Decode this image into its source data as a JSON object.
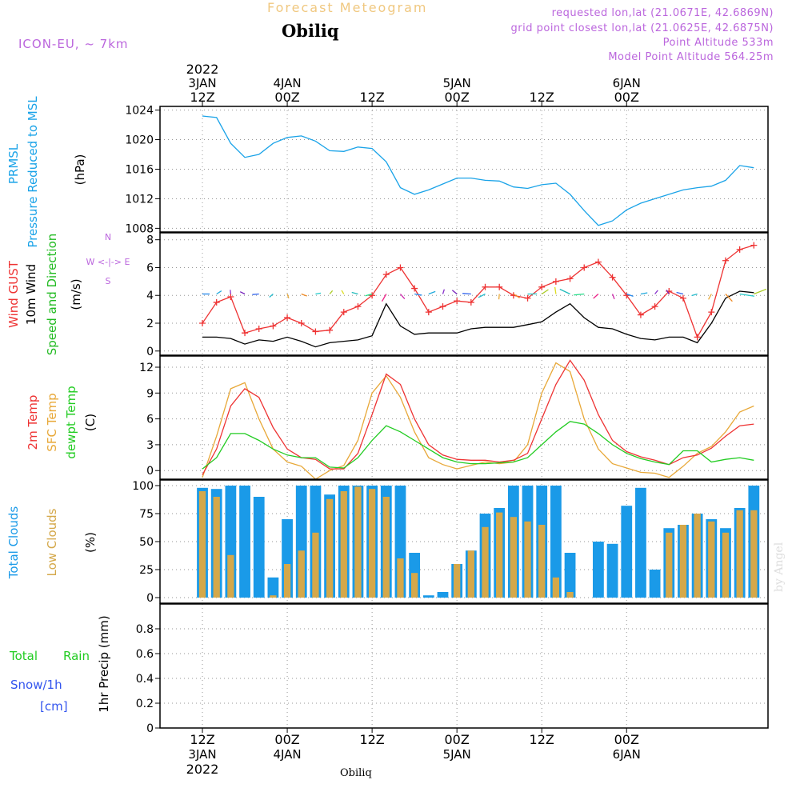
{
  "header": {
    "model": "ICON-EU, ~ 7km",
    "subtitle": "Forecast Meteogram",
    "station": "Obiliq",
    "requested": "requested lon,lat (21.0671E, 42.6869N)",
    "gridpoint": "grid point closest lon,lat (21.0625E, 42.6875N)",
    "point_alt": "Point Altitude 533m",
    "model_alt": "Model Point Altitude 564.25m"
  },
  "top_axis": [
    {
      "l1": "2022",
      "l2": "3JAN",
      "l3": "12Z"
    },
    {
      "l1": "",
      "l2": "4JAN",
      "l3": "00Z"
    },
    {
      "l1": "",
      "l2": "",
      "l3": "12Z"
    },
    {
      "l1": "",
      "l2": "5JAN",
      "l3": "00Z"
    },
    {
      "l1": "",
      "l2": "",
      "l3": "12Z"
    },
    {
      "l1": "",
      "l2": "6JAN",
      "l3": "00Z"
    }
  ],
  "bottom_axis": [
    {
      "l1": "12Z",
      "l2": "3JAN",
      "l3": "2022"
    },
    {
      "l1": "00Z",
      "l2": "4JAN",
      "l3": ""
    },
    {
      "l1": "12Z",
      "l2": "",
      "l3": ""
    },
    {
      "l1": "00Z",
      "l2": "5JAN",
      "l3": ""
    },
    {
      "l1": "12Z",
      "l2": "",
      "l3": ""
    },
    {
      "l1": "00Z",
      "l2": "6JAN",
      "l3": ""
    }
  ],
  "footer": {
    "station": "Obiliq",
    "credit": "by Angel"
  },
  "panel_labels": {
    "pressure": {
      "a": "PRMSL",
      "b": "Pressure Reduced to MSL",
      "unit": "(hPa)"
    },
    "wind": {
      "a": "Wind GUST",
      "b": "10m Wind",
      "c": "Speed and Direction",
      "unit": "(m/s)",
      "compass_we": "W <-|-> E",
      "compass_n": "N",
      "compass_s": "S"
    },
    "temp": {
      "a": "2m Temp",
      "b": "SFC Temp",
      "c": "dewpt Temp",
      "unit": "(C)"
    },
    "clouds": {
      "a": "Total Clouds",
      "b": "Low Clouds",
      "unit": "(%)"
    },
    "precip": {
      "total": "Total",
      "rain": "Rain",
      "snow": "Snow/1h",
      "cm": "[cm]",
      "axis": "1hr Precip (mm)"
    }
  },
  "colors": {
    "pressure": "#1aa3e8",
    "gust": "#ee3333",
    "wind": "#000000",
    "winddir": "#22bb22",
    "t2m": "#ee3333",
    "tsfc": "#e8a838",
    "tdew": "#22cc22",
    "cloud_total": "#1a9ae8",
    "cloud_low": "#d4a84a",
    "snow": "#3355ee",
    "model": "#bb66dd",
    "subtitle": "#f0c880"
  },
  "chart_data": [
    {
      "type": "line",
      "name": "PRMSL",
      "x_hours": [
        0,
        2,
        4,
        6,
        8,
        10,
        12,
        14,
        16,
        18,
        20,
        22,
        24,
        26,
        28,
        30,
        32,
        34,
        36,
        38,
        40,
        42,
        44,
        46,
        48,
        50,
        52,
        54,
        56,
        58,
        60,
        62,
        64,
        66,
        68,
        70,
        72,
        74,
        76,
        78
      ],
      "y_unit": "hPa",
      "ylim": [
        1007.5,
        1024.5
      ],
      "yticks": [
        1008,
        1012,
        1016,
        1020,
        1024
      ],
      "series": [
        {
          "name": "PRMSL",
          "values": [
            1023.2,
            1023.0,
            1019.5,
            1017.6,
            1018.0,
            1019.5,
            1020.3,
            1020.5,
            1019.8,
            1018.5,
            1018.4,
            1019.0,
            1018.8,
            1017.0,
            1013.5,
            1012.6,
            1013.2,
            1014.0,
            1014.8,
            1014.8,
            1014.5,
            1014.4,
            1013.6,
            1013.4,
            1013.9,
            1014.1,
            1012.6,
            1010.4,
            1008.4,
            1009.0,
            1010.5,
            1011.4,
            1012.0,
            1012.6,
            1013.2,
            1013.5,
            1013.7,
            1014.5,
            1016.5,
            1016.2
          ]
        }
      ]
    },
    {
      "type": "line",
      "name": "Wind",
      "x_hours": [
        0,
        2,
        4,
        6,
        8,
        10,
        12,
        14,
        16,
        18,
        20,
        22,
        24,
        26,
        28,
        30,
        32,
        34,
        36,
        38,
        40,
        42,
        44,
        46,
        48,
        50,
        52,
        54,
        56,
        58,
        60,
        62,
        64,
        66,
        68,
        70,
        72,
        74,
        76,
        78
      ],
      "y_unit": "m/s",
      "ylim": [
        -0.3,
        8.5
      ],
      "yticks": [
        0,
        2,
        4,
        6,
        8
      ],
      "series": [
        {
          "name": "Wind GUST",
          "values": [
            2.0,
            3.5,
            3.9,
            1.3,
            1.6,
            1.8,
            2.4,
            2.0,
            1.4,
            1.5,
            2.8,
            3.2,
            4.0,
            5.5,
            6.0,
            4.5,
            2.8,
            3.2,
            3.6,
            3.5,
            4.6,
            4.6,
            4.0,
            3.8,
            4.6,
            5.0,
            5.2,
            6.0,
            6.4,
            5.3,
            4.0,
            2.6,
            3.2,
            4.3,
            3.8,
            1.0,
            2.8,
            6.5,
            7.3,
            7.6
          ]
        },
        {
          "name": "10m Wind",
          "values": [
            1.0,
            1.0,
            0.9,
            0.5,
            0.8,
            0.7,
            1.0,
            0.7,
            0.3,
            0.6,
            0.7,
            0.8,
            1.1,
            3.4,
            1.8,
            1.2,
            1.3,
            1.3,
            1.3,
            1.6,
            1.7,
            1.7,
            1.7,
            1.9,
            2.1,
            2.8,
            3.4,
            2.4,
            1.7,
            1.6,
            1.2,
            0.9,
            0.8,
            1.0,
            1.0,
            0.6,
            2.0,
            3.8,
            4.3,
            4.2
          ]
        }
      ]
    },
    {
      "type": "line",
      "name": "Temperature",
      "x_hours": [
        0,
        2,
        4,
        6,
        8,
        10,
        12,
        14,
        16,
        18,
        20,
        22,
        24,
        26,
        28,
        30,
        32,
        34,
        36,
        38,
        40,
        42,
        44,
        46,
        48,
        50,
        52,
        54,
        56,
        58,
        60,
        62,
        64,
        66,
        68,
        70,
        72,
        74,
        76,
        78
      ],
      "y_unit": "C",
      "ylim": [
        -1.0,
        13.3
      ],
      "yticks": [
        0,
        3,
        6,
        9,
        12
      ],
      "series": [
        {
          "name": "2m Temp",
          "values": [
            -0.5,
            2.5,
            7.5,
            9.5,
            8.5,
            5.0,
            2.5,
            1.5,
            1.3,
            0.2,
            0.2,
            2.0,
            6.5,
            11.2,
            10.0,
            6.0,
            3.0,
            1.8,
            1.3,
            1.2,
            1.2,
            1.0,
            1.2,
            2.0,
            6.0,
            10.0,
            12.8,
            10.5,
            6.5,
            3.5,
            2.2,
            1.6,
            1.2,
            0.7,
            1.5,
            1.8,
            2.6,
            4.0,
            5.2,
            5.4
          ]
        },
        {
          "name": "SFC Temp",
          "values": [
            -0.8,
            4.0,
            9.5,
            10.2,
            6.0,
            2.5,
            1.0,
            0.5,
            -1.0,
            0.0,
            0.6,
            3.5,
            9.0,
            11.0,
            8.5,
            4.5,
            1.5,
            0.7,
            0.2,
            0.6,
            1.0,
            0.8,
            1.0,
            3.0,
            9.0,
            12.5,
            11.5,
            6.0,
            2.5,
            0.8,
            0.3,
            -0.2,
            -0.3,
            -0.8,
            0.5,
            2.0,
            2.8,
            4.5,
            6.8,
            7.5
          ]
        },
        {
          "name": "dewpt Temp",
          "values": [
            0.2,
            1.5,
            4.3,
            4.3,
            3.5,
            2.5,
            1.8,
            1.5,
            1.5,
            0.4,
            0.3,
            1.5,
            3.5,
            5.2,
            4.5,
            3.5,
            2.5,
            1.5,
            1.0,
            0.8,
            0.8,
            0.9,
            1.0,
            1.5,
            3.0,
            4.5,
            5.7,
            5.4,
            4.3,
            3.0,
            2.0,
            1.4,
            1.0,
            0.7,
            2.3,
            2.3,
            1.0,
            1.3,
            1.5,
            1.2
          ]
        }
      ]
    },
    {
      "type": "bar",
      "name": "Clouds",
      "x_hours": [
        0,
        2,
        4,
        6,
        8,
        10,
        12,
        14,
        16,
        18,
        20,
        22,
        24,
        26,
        28,
        30,
        32,
        34,
        36,
        38,
        40,
        42,
        44,
        46,
        48,
        50,
        52,
        54,
        56,
        58,
        60,
        62,
        64,
        66,
        68,
        70,
        72,
        74,
        76,
        78
      ],
      "y_unit": "%",
      "ylim": [
        -5,
        105
      ],
      "yticks": [
        0,
        25,
        50,
        75,
        100
      ],
      "series": [
        {
          "name": "Total Clouds",
          "values": [
            98,
            97,
            100,
            100,
            90,
            18,
            70,
            100,
            100,
            92,
            100,
            100,
            100,
            100,
            100,
            40,
            2,
            5,
            30,
            42,
            75,
            80,
            100,
            100,
            100,
            100,
            40,
            0,
            50,
            48,
            82,
            98,
            25,
            62,
            65,
            75,
            70,
            62,
            80,
            100
          ]
        },
        {
          "name": "Low Clouds",
          "values": [
            95,
            90,
            38,
            0,
            0,
            2,
            30,
            42,
            58,
            88,
            95,
            99,
            97,
            90,
            35,
            22,
            0,
            0,
            30,
            42,
            63,
            76,
            72,
            68,
            65,
            18,
            5,
            0,
            0,
            0,
            0,
            0,
            0,
            58,
            65,
            75,
            68,
            58,
            78,
            78
          ]
        }
      ]
    },
    {
      "type": "bar",
      "name": "1hr Precip",
      "x_hours": [
        0,
        6,
        12,
        18,
        24,
        30,
        36,
        42,
        48,
        54,
        60,
        66,
        72,
        78
      ],
      "y_unit": "mm",
      "ylim": [
        0,
        1.0
      ],
      "yticks": [
        0,
        0.2,
        0.4,
        0.6,
        0.8
      ],
      "series": [
        {
          "name": "Total Rain",
          "values": [
            0,
            0,
            0,
            0,
            0,
            0,
            0,
            0,
            0,
            0,
            0,
            0,
            0,
            0
          ]
        }
      ]
    }
  ]
}
